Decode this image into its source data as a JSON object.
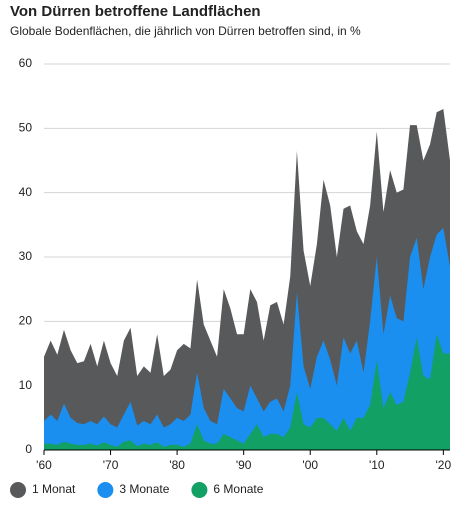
{
  "chart_data": {
    "type": "area",
    "title": "Von Dürren betroffene Landflächen",
    "subtitle": "Globale Bodenflächen, die jährlich von Dürren betroffen sind, in %",
    "x": [
      1960,
      1961,
      1962,
      1963,
      1964,
      1965,
      1966,
      1967,
      1968,
      1969,
      1970,
      1971,
      1972,
      1973,
      1974,
      1975,
      1976,
      1977,
      1978,
      1979,
      1980,
      1981,
      1982,
      1983,
      1984,
      1985,
      1986,
      1987,
      1988,
      1989,
      1990,
      1991,
      1992,
      1993,
      1994,
      1995,
      1996,
      1997,
      1998,
      1999,
      2000,
      2001,
      2002,
      2003,
      2004,
      2005,
      2006,
      2007,
      2008,
      2009,
      2010,
      2011,
      2012,
      2013,
      2014,
      2015,
      2016,
      2017,
      2018,
      2019,
      2020,
      2021
    ],
    "series": [
      {
        "name": "1 Monat",
        "color": "#58595b",
        "values": [
          14.5,
          17,
          14.8,
          18.7,
          15.5,
          13.5,
          13.8,
          16.5,
          13,
          17,
          13.5,
          11.5,
          17,
          19,
          11.5,
          13,
          12,
          18,
          11.5,
          12.5,
          15.5,
          16.5,
          15.8,
          26.5,
          19.5,
          17,
          14.5,
          25,
          22,
          18,
          18,
          25,
          23,
          17,
          22.5,
          23,
          19.5,
          27,
          46.5,
          31,
          25.5,
          32,
          42,
          38,
          30,
          37.5,
          38,
          34,
          32,
          38,
          49.5,
          37,
          43.5,
          40,
          40.5,
          50.5,
          50.5,
          45,
          47.5,
          52.5,
          53,
          45
        ]
      },
      {
        "name": "3 Monate",
        "color": "#1a8ff0",
        "values": [
          4.5,
          5.5,
          4.5,
          7.2,
          5,
          4.2,
          4,
          4.5,
          4,
          5.2,
          4,
          3.5,
          5.5,
          7.5,
          3.8,
          4.5,
          4,
          5.5,
          3.5,
          4,
          5,
          4.5,
          5.5,
          12,
          6.5,
          4.5,
          4,
          9.5,
          8,
          6.5,
          6,
          10,
          8,
          6,
          7.5,
          8,
          6,
          10,
          24.5,
          13,
          9.5,
          14.5,
          17,
          14,
          10,
          17.5,
          15,
          17,
          12,
          20,
          30,
          18,
          24,
          20.5,
          20,
          30,
          33,
          25,
          30,
          33.5,
          34.5,
          28.5
        ]
      },
      {
        "name": "6 Monate",
        "color": "#12a065",
        "values": [
          1,
          1,
          0.8,
          1.3,
          1,
          0.8,
          0.8,
          1,
          0.7,
          1.2,
          0.8,
          0.5,
          1.3,
          1.5,
          0.6,
          1,
          0.8,
          1.2,
          0.5,
          0.8,
          0.8,
          0.5,
          1,
          4,
          1.5,
          1,
          1,
          2.5,
          2,
          1.5,
          1,
          2.5,
          4,
          2,
          2.5,
          2.5,
          2,
          3.5,
          9,
          4,
          3.5,
          5,
          5,
          4,
          3,
          5,
          3,
          5,
          5,
          7,
          14,
          6.5,
          9,
          7,
          7.5,
          12,
          17.5,
          11.5,
          11,
          18,
          15,
          15
        ]
      }
    ],
    "xlim": [
      1960,
      2021
    ],
    "xticks": [
      {
        "value": 1960,
        "label": "'60"
      },
      {
        "value": 1970,
        "label": "'70"
      },
      {
        "value": 1980,
        "label": "'80"
      },
      {
        "value": 1990,
        "label": "'90"
      },
      {
        "value": 2000,
        "label": "'00"
      },
      {
        "value": 2010,
        "label": "'10"
      },
      {
        "value": 2020,
        "label": "'20"
      }
    ],
    "ylim": [
      0,
      60
    ],
    "yticks": [
      0,
      10,
      20,
      30,
      40,
      50,
      60
    ],
    "grid": true
  }
}
